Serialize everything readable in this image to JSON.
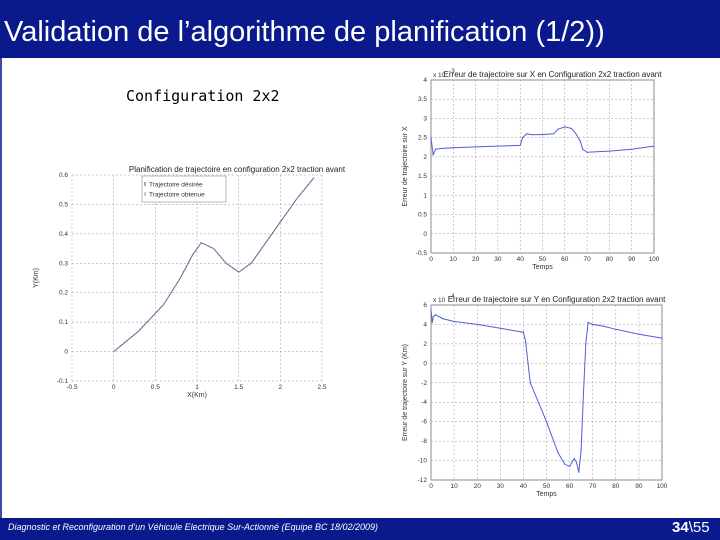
{
  "slide": {
    "title": "Validation de l’algorithme de planification (1/2))",
    "config_label": "Configuration 2x2",
    "footer": "Diagnostic et Reconfiguration d’un Véhicule Electrique Sur-Actionné (Equipe BC 18/02/2009)",
    "page_current": "34",
    "page_sep": "\\",
    "page_total": "55"
  },
  "chart_data": [
    {
      "type": "line",
      "title": "Planification de trajectoire en configuration 2x2 traction avant",
      "xlabel": "X(Km)",
      "ylabel": "Y(Km)",
      "xlim": [
        -0.5,
        2.5
      ],
      "ylim": [
        -0.1,
        0.6
      ],
      "xticks": [
        "-0.5",
        "0",
        "0.5",
        "1",
        "1.5",
        "2",
        "2.5"
      ],
      "yticks": [
        "-0.1",
        "0",
        "0.1",
        "0.2",
        "0.3",
        "0.4",
        "0.5",
        "0.6"
      ],
      "grid": true,
      "legend_position": "top-left",
      "series": [
        {
          "name": "Trajectoire désirée",
          "color": "#555555",
          "x": [
            0.0,
            0.3,
            0.6,
            0.8,
            0.95,
            1.05,
            1.2,
            1.35,
            1.5,
            1.65,
            1.8,
            2.0,
            2.2,
            2.4
          ],
          "y": [
            0.0,
            0.07,
            0.16,
            0.25,
            0.33,
            0.37,
            0.35,
            0.3,
            0.27,
            0.3,
            0.36,
            0.44,
            0.52,
            0.59
          ]
        },
        {
          "name": "Trajectoire obtenue",
          "color": "#8a8ad8",
          "x": [
            0.0,
            0.3,
            0.6,
            0.8,
            0.95,
            1.05,
            1.2,
            1.35,
            1.5,
            1.65,
            1.8,
            2.0,
            2.2,
            2.4
          ],
          "y": [
            0.0,
            0.07,
            0.16,
            0.25,
            0.33,
            0.37,
            0.35,
            0.3,
            0.27,
            0.3,
            0.36,
            0.44,
            0.52,
            0.59
          ]
        }
      ]
    },
    {
      "type": "line",
      "title": "Erreur de trajectoire sur X en Configuration 2x2 traction avant",
      "xlabel": "Temps",
      "ylabel": "Erreur de trajectoire sur X",
      "exponent": "x 10",
      "exponent_power": "-3",
      "xlim": [
        0,
        100
      ],
      "ylim": [
        -0.5,
        4
      ],
      "xticks": [
        "0",
        "10",
        "20",
        "30",
        "40",
        "50",
        "60",
        "70",
        "80",
        "90",
        "100"
      ],
      "yticks": [
        "-0.5",
        "0",
        "0.5",
        "1",
        "1.5",
        "2",
        "2.5",
        "3",
        "3.5",
        "4"
      ],
      "grid": true,
      "series": [
        {
          "color": "#5060d0",
          "x": [
            0,
            1,
            2,
            5,
            10,
            20,
            30,
            40,
            41,
            43,
            45,
            50,
            55,
            57,
            60,
            63,
            65,
            67,
            68,
            70,
            80,
            90,
            100
          ],
          "y": [
            2.5,
            2.05,
            2.2,
            2.22,
            2.24,
            2.26,
            2.28,
            2.3,
            2.5,
            2.6,
            2.58,
            2.58,
            2.6,
            2.72,
            2.78,
            2.74,
            2.6,
            2.4,
            2.2,
            2.12,
            2.15,
            2.2,
            2.28
          ]
        }
      ]
    },
    {
      "type": "line",
      "title": "Erreur de trajectoire sur Y en Configuration 2x2 traction avant",
      "xlabel": "Temps",
      "ylabel": "Erreur de trajectoire sur Y (Km)",
      "exponent": "x 10",
      "exponent_power": "-4",
      "xlim": [
        0,
        100
      ],
      "ylim": [
        -12,
        6
      ],
      "xticks": [
        "0",
        "10",
        "20",
        "30",
        "40",
        "50",
        "60",
        "70",
        "80",
        "90",
        "100"
      ],
      "yticks": [
        "-12",
        "-10",
        "-8",
        "-6",
        "-4",
        "-2",
        "0",
        "2",
        "4",
        "6"
      ],
      "grid": true,
      "series": [
        {
          "color": "#5060d0",
          "x": [
            0,
            0.5,
            1,
            2,
            5,
            10,
            20,
            30,
            40,
            41,
            42,
            43,
            50,
            55,
            58,
            60,
            62,
            63,
            64,
            65,
            66,
            67,
            68,
            70,
            75,
            80,
            90,
            100
          ],
          "y": [
            5.5,
            4.2,
            4.8,
            5.0,
            4.6,
            4.3,
            4.0,
            3.6,
            3.2,
            2.2,
            0,
            -2,
            -6,
            -9.2,
            -10.4,
            -10.6,
            -9.8,
            -10.2,
            -11.2,
            -9,
            -3,
            2,
            4.2,
            4.0,
            3.8,
            3.5,
            3.0,
            2.6
          ]
        }
      ]
    }
  ]
}
